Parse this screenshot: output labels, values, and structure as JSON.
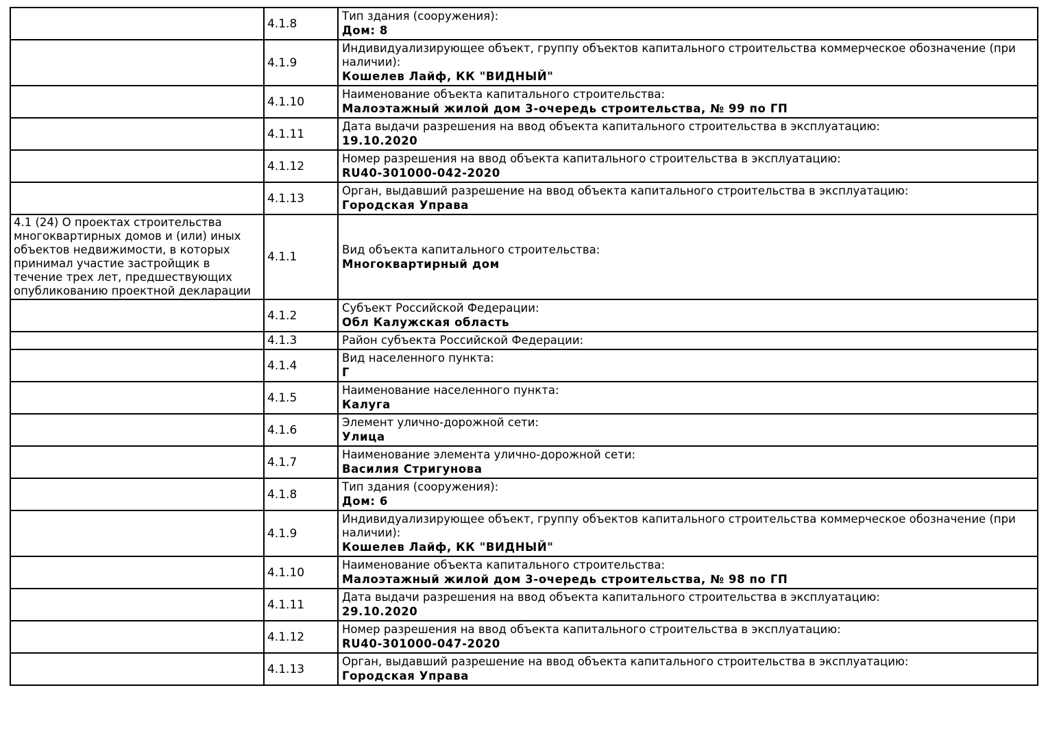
{
  "document": {
    "background_color": "#ffffff",
    "text_color": "#000000",
    "border_color": "#000000"
  },
  "table": {
    "section_label": "4.1 (24) О проектах строительства многоквартирных домов и (или) иных объектов недвижимости, в которых принимал участие застройщик в течение трех лет, предшествующих опубликованию проектной декларации",
    "rows": [
      {
        "code": "4.1.8",
        "label": "Тип здания (сооружения):",
        "value": "Дом: 8",
        "has_section": false
      },
      {
        "code": "4.1.9",
        "label": "Индивидуализирующее объект, группу объектов капитального строительства коммерческое обозначение (при наличии):",
        "value": "Кошелев Лайф, КК \"ВИДНЫЙ\"",
        "has_section": false
      },
      {
        "code": "4.1.10",
        "label": "Наименование объекта капитального строительства:",
        "value": "Малоэтажный жилой дом 3-очередь строительства, № 99 по ГП",
        "has_section": false
      },
      {
        "code": "4.1.11",
        "label": "Дата выдачи разрешения на ввод объекта капитального строительства в эксплуатацию:",
        "value": "19.10.2020",
        "has_section": false
      },
      {
        "code": "4.1.12",
        "label": "Номер разрешения на ввод объекта капитального строительства в эксплуатацию:",
        "value": "RU40-301000-042-2020",
        "has_section": false
      },
      {
        "code": "4.1.13",
        "label": "Орган, выдавший разрешение на ввод объекта капитального строительства в эксплуатацию:",
        "value": "Городская Управа",
        "has_section": false
      },
      {
        "code": "4.1.1",
        "label": "Вид объекта капитального строительства:",
        "value": "Многоквартирный дом",
        "has_section": true
      },
      {
        "code": "4.1.2",
        "label": "Субъект Российской Федерации:",
        "value": "Обл Калужская область",
        "has_section": false
      },
      {
        "code": "4.1.3",
        "label": "Район субъекта Российской Федерации:",
        "value": "",
        "has_section": false
      },
      {
        "code": "4.1.4",
        "label": "Вид населенного пункта:",
        "value": "Г",
        "has_section": false
      },
      {
        "code": "4.1.5",
        "label": "Наименование населенного пункта:",
        "value": "Калуга",
        "has_section": false
      },
      {
        "code": "4.1.6",
        "label": "Элемент улично-дорожной сети:",
        "value": "Улица",
        "has_section": false
      },
      {
        "code": "4.1.7",
        "label": "Наименование элемента улично-дорожной сети:",
        "value": "Василия Стригунова",
        "has_section": false
      },
      {
        "code": "4.1.8",
        "label": "Тип здания (сооружения):",
        "value": "Дом: 6",
        "has_section": false
      },
      {
        "code": "4.1.9",
        "label": "Индивидуализирующее объект, группу объектов капитального строительства коммерческое обозначение (при наличии):",
        "value": "Кошелев Лайф, КК \"ВИДНЫЙ\"",
        "has_section": false
      },
      {
        "code": "4.1.10",
        "label": "Наименование объекта капитального строительства:",
        "value": "Малоэтажный жилой дом 3-очередь строительства, № 98 по ГП",
        "has_section": false
      },
      {
        "code": "4.1.11",
        "label": "Дата выдачи разрешения на ввод объекта капитального строительства в эксплуатацию:",
        "value": "29.10.2020",
        "has_section": false
      },
      {
        "code": "4.1.12",
        "label": "Номер разрешения на ввод объекта капитального строительства в эксплуатацию:",
        "value": "RU40-301000-047-2020",
        "has_section": false
      },
      {
        "code": "4.1.13",
        "label": "Орган, выдавший разрешение на ввод объекта капитального строительства в эксплуатацию:",
        "value": "Городская Управа",
        "has_section": false
      }
    ]
  }
}
